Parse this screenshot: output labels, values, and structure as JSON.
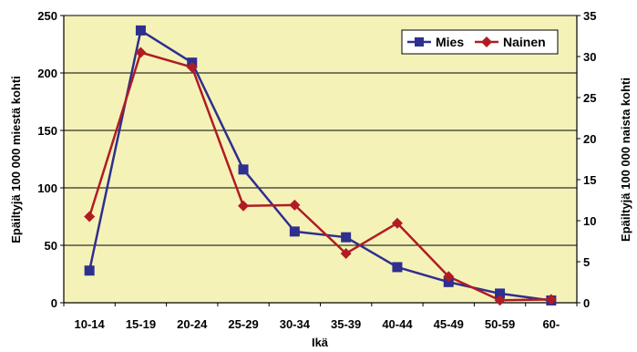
{
  "chart_data": {
    "type": "line",
    "xlabel": "Ikä",
    "ylabel_left": "Epäiltyjä 100 000 miestä kohti",
    "ylabel_right": "Epäiltyjä 100 000 naista kohti",
    "categories": [
      "10-14",
      "15-19",
      "20-24",
      "25-29",
      "30-34",
      "35-39",
      "40-44",
      "45-49",
      "50-59",
      "60-"
    ],
    "ylim_left": [
      0,
      250
    ],
    "yticks_left": [
      "0",
      "50",
      "100",
      "150",
      "200",
      "250"
    ],
    "ylim_right": [
      0,
      35
    ],
    "yticks_right": [
      "0",
      "5",
      "10",
      "15",
      "20",
      "25",
      "30",
      "35"
    ],
    "grid": "horizontal",
    "legend_position": "top-right",
    "plot_background": "#f5f2b8",
    "series": [
      {
        "name": "Mies",
        "axis": "left",
        "color": "#2e2f8f",
        "marker": "square",
        "values": [
          28,
          237,
          209,
          116,
          62,
          57,
          31,
          18,
          8,
          2
        ]
      },
      {
        "name": "Nainen",
        "axis": "right",
        "color": "#b01c22",
        "marker": "diamond",
        "values": [
          10.5,
          30.5,
          28.7,
          11.8,
          11.9,
          6.0,
          9.7,
          3.2,
          0.3,
          0.4
        ]
      }
    ]
  }
}
